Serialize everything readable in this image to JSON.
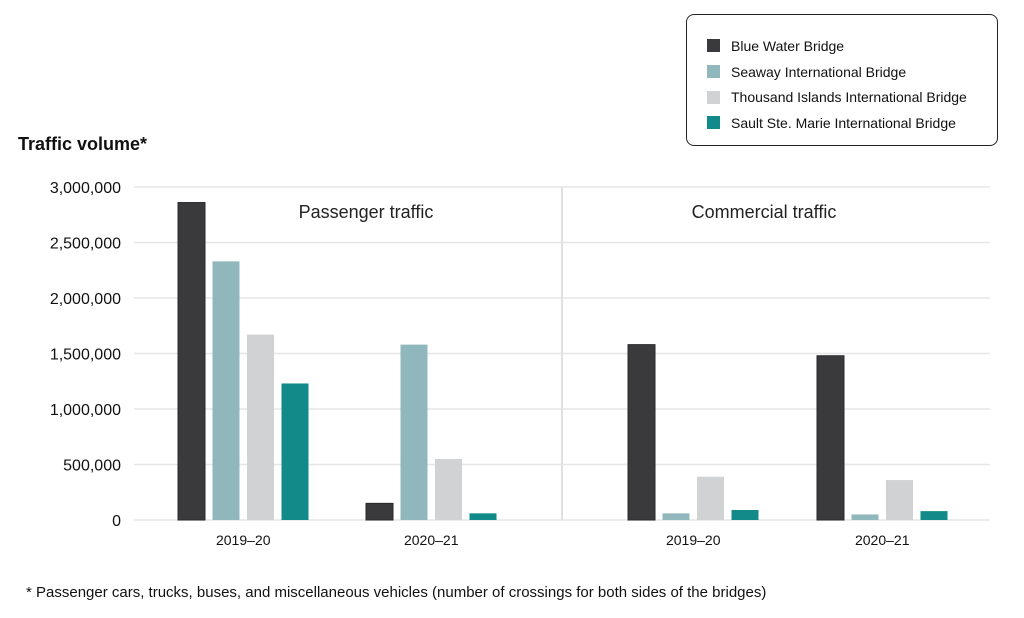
{
  "chart_data": {
    "type": "bar",
    "title": "",
    "ylabel": "Traffic volume*",
    "xlabel": "",
    "ylim": [
      0,
      3000000
    ],
    "yticks": [
      0,
      500000,
      1000000,
      1500000,
      2000000,
      2500000,
      3000000
    ],
    "ytick_labels": [
      "0",
      "500,000",
      "1,000,000",
      "1,500,000",
      "2,000,000",
      "2,500,000",
      "3,000,000"
    ],
    "grid": true,
    "legend_position": "top-right",
    "series_names": [
      "Blue Water Bridge",
      "Seaway International Bridge",
      "Thousand Islands International Bridge",
      "Sault Ste. Marie International Bridge"
    ],
    "series_colors": [
      "#3a3a3c",
      "#90b7bb",
      "#d1d2d4",
      "#118a89"
    ],
    "panels": [
      {
        "title": "Passenger traffic",
        "categories": [
          "2019–20",
          "2020–21"
        ],
        "series": [
          {
            "name": "Blue Water Bridge",
            "values": [
              2860000,
              150000
            ]
          },
          {
            "name": "Seaway International Bridge",
            "values": [
              2330000,
              1580000
            ]
          },
          {
            "name": "Thousand Islands International Bridge",
            "values": [
              1670000,
              550000
            ]
          },
          {
            "name": "Sault Ste. Marie International Bridge",
            "values": [
              1230000,
              60000
            ]
          }
        ]
      },
      {
        "title": "Commercial traffic",
        "categories": [
          "2019–20",
          "2020–21"
        ],
        "series": [
          {
            "name": "Blue Water Bridge",
            "values": [
              1580000,
              1480000
            ]
          },
          {
            "name": "Seaway International Bridge",
            "values": [
              60000,
              50000
            ]
          },
          {
            "name": "Thousand Islands International Bridge",
            "values": [
              390000,
              360000
            ]
          },
          {
            "name": "Sault Ste. Marie International Bridge",
            "values": [
              90000,
              80000
            ]
          }
        ]
      }
    ]
  },
  "footnote": "* Passenger cars, trucks, buses, and miscellaneous vehicles (number of crossings for both sides of the bridges)"
}
